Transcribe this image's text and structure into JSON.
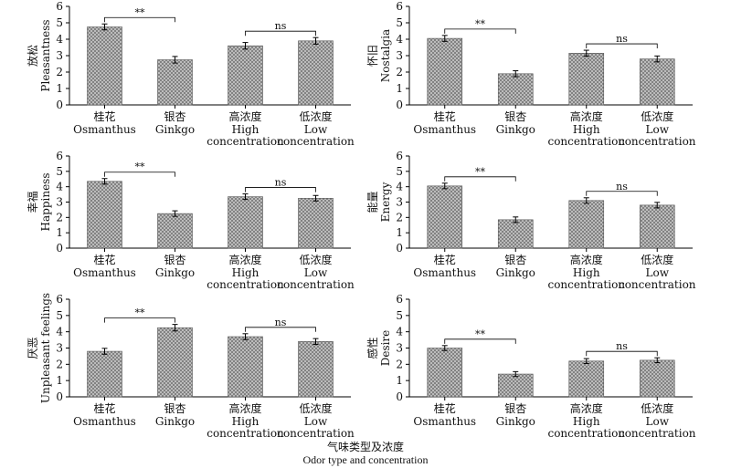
{
  "figure": {
    "xlabel_cn": "气味类型及浓度",
    "xlabel_en": "Odor type and concentration"
  },
  "colors": {
    "bar_fill": "#c8c8c8",
    "bar_hatch": "#6b6b6b",
    "axis": "#000000"
  },
  "chart_data": [
    {
      "type": "bar",
      "ylabel_cn": "放松",
      "ylabel_en": "Pleasantness",
      "categories": [
        {
          "cn": "桂花",
          "en": [
            "Osmanthus"
          ]
        },
        {
          "cn": "银杏",
          "en": [
            "Ginkgo"
          ]
        },
        {
          "cn": "高浓度",
          "en": [
            "High",
            "concentration"
          ]
        },
        {
          "cn": "低浓度",
          "en": [
            "Low",
            "concentration"
          ]
        }
      ],
      "values": [
        4.75,
        2.75,
        3.6,
        3.9
      ],
      "errors": [
        0.18,
        0.2,
        0.2,
        0.2
      ],
      "ylim": [
        0,
        6
      ],
      "yticks": [
        0,
        1,
        2,
        3,
        4,
        5,
        6
      ],
      "significance": [
        {
          "from": 0,
          "to": 1,
          "label": "**"
        },
        {
          "from": 2,
          "to": 3,
          "label": "ns"
        }
      ]
    },
    {
      "type": "bar",
      "ylabel_cn": "怀旧",
      "ylabel_en": "Nostalgia",
      "categories": [
        {
          "cn": "桂花",
          "en": [
            "Osmanthus"
          ]
        },
        {
          "cn": "银杏",
          "en": [
            "Ginkgo"
          ]
        },
        {
          "cn": "高浓度",
          "en": [
            "High",
            "concentration"
          ]
        },
        {
          "cn": "低浓度",
          "en": [
            "Low",
            "concentration"
          ]
        }
      ],
      "values": [
        4.05,
        1.9,
        3.15,
        2.8
      ],
      "errors": [
        0.18,
        0.18,
        0.18,
        0.18
      ],
      "ylim": [
        0,
        6
      ],
      "yticks": [
        0,
        1,
        2,
        3,
        4,
        5,
        6
      ],
      "significance": [
        {
          "from": 0,
          "to": 1,
          "label": "**"
        },
        {
          "from": 2,
          "to": 3,
          "label": "ns"
        }
      ]
    },
    {
      "type": "bar",
      "ylabel_cn": "幸福",
      "ylabel_en": "Happiness",
      "categories": [
        {
          "cn": "桂花",
          "en": [
            "Osmanthus"
          ]
        },
        {
          "cn": "银杏",
          "en": [
            "Ginkgo"
          ]
        },
        {
          "cn": "高浓度",
          "en": [
            "High",
            "concentration"
          ]
        },
        {
          "cn": "低浓度",
          "en": [
            "Low",
            "concentration"
          ]
        }
      ],
      "values": [
        4.35,
        2.25,
        3.35,
        3.25
      ],
      "errors": [
        0.18,
        0.18,
        0.18,
        0.18
      ],
      "ylim": [
        0,
        6
      ],
      "yticks": [
        0,
        1,
        2,
        3,
        4,
        5,
        6
      ],
      "significance": [
        {
          "from": 0,
          "to": 1,
          "label": "**"
        },
        {
          "from": 2,
          "to": 3,
          "label": "ns"
        }
      ]
    },
    {
      "type": "bar",
      "ylabel_cn": "能量",
      "ylabel_en": "Energy",
      "categories": [
        {
          "cn": "桂花",
          "en": [
            "Osmanthus"
          ]
        },
        {
          "cn": "银杏",
          "en": [
            "Ginkgo"
          ]
        },
        {
          "cn": "高浓度",
          "en": [
            "High",
            "concentration"
          ]
        },
        {
          "cn": "低浓度",
          "en": [
            "Low",
            "concentration"
          ]
        }
      ],
      "values": [
        4.05,
        1.85,
        3.1,
        2.8
      ],
      "errors": [
        0.18,
        0.18,
        0.18,
        0.18
      ],
      "ylim": [
        0,
        6
      ],
      "yticks": [
        0,
        1,
        2,
        3,
        4,
        5,
        6
      ],
      "significance": [
        {
          "from": 0,
          "to": 1,
          "label": "**"
        },
        {
          "from": 2,
          "to": 3,
          "label": "ns"
        }
      ]
    },
    {
      "type": "bar",
      "ylabel_cn": "厌恶",
      "ylabel_en": "Unpleasant feelings",
      "categories": [
        {
          "cn": "桂花",
          "en": [
            "Osmanthus"
          ]
        },
        {
          "cn": "银杏",
          "en": [
            "Ginkgo"
          ]
        },
        {
          "cn": "高浓度",
          "en": [
            "High",
            "concentration"
          ]
        },
        {
          "cn": "低浓度",
          "en": [
            "Low",
            "concentration"
          ]
        }
      ],
      "values": [
        2.8,
        4.25,
        3.7,
        3.4
      ],
      "errors": [
        0.18,
        0.2,
        0.18,
        0.18
      ],
      "ylim": [
        0,
        6
      ],
      "yticks": [
        0,
        1,
        2,
        3,
        4,
        5,
        6
      ],
      "significance": [
        {
          "from": 0,
          "to": 1,
          "label": "**"
        },
        {
          "from": 2,
          "to": 3,
          "label": "ns"
        }
      ]
    },
    {
      "type": "bar",
      "ylabel_cn": "感性",
      "ylabel_en": "Desire",
      "categories": [
        {
          "cn": "桂花",
          "en": [
            "Osmanthus"
          ]
        },
        {
          "cn": "银杏",
          "en": [
            "Ginkgo"
          ]
        },
        {
          "cn": "高浓度",
          "en": [
            "High",
            "concentration"
          ]
        },
        {
          "cn": "低浓度",
          "en": [
            "Low",
            "concentration"
          ]
        }
      ],
      "values": [
        3.0,
        1.4,
        2.2,
        2.25
      ],
      "errors": [
        0.15,
        0.15,
        0.15,
        0.15
      ],
      "ylim": [
        0,
        6
      ],
      "yticks": [
        0,
        1,
        2,
        3,
        4,
        5,
        6
      ],
      "significance": [
        {
          "from": 0,
          "to": 1,
          "label": "**"
        },
        {
          "from": 2,
          "to": 3,
          "label": "ns"
        }
      ]
    }
  ]
}
